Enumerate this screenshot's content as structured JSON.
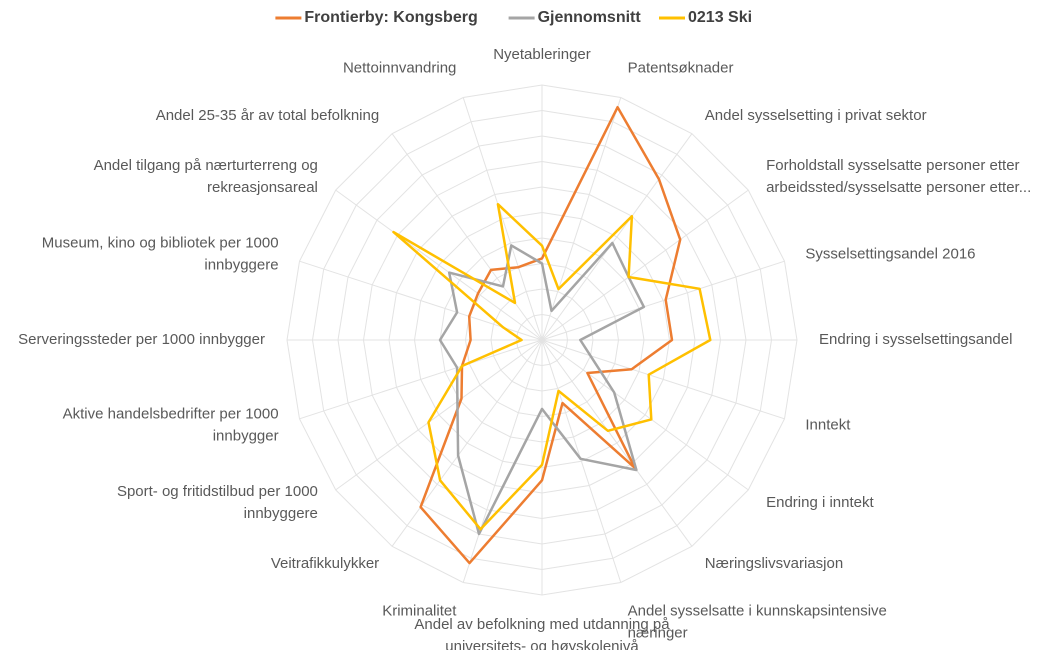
{
  "chart_data": {
    "type": "radar",
    "categories": [
      [
        "Nyetableringer"
      ],
      [
        "Patentsøknader"
      ],
      [
        "Andel sysselsetting i privat sektor"
      ],
      [
        "Forholdstall sysselsatte personer etter",
        "arbeidssted/sysselsatte personer etter..."
      ],
      [
        "Sysselsettingsandel 2016"
      ],
      [
        "Endring i sysselsettingsandel"
      ],
      [
        "Inntekt"
      ],
      [
        "Endring i inntekt"
      ],
      [
        "Næringslivsvariasjon"
      ],
      [
        "Andel sysselsatte i kunnskapsintensive",
        "næringer"
      ],
      [
        "Andel av befolkning med utdanning på",
        "universitets- og høyskolenivå"
      ],
      [
        "Kriminalitet"
      ],
      [
        "Veitrafikkulykker"
      ],
      [
        "Sport- og fritidstilbud per 1000",
        "innbyggere"
      ],
      [
        "Aktive handelsbedrifter per 1000",
        "innbygger"
      ],
      [
        "Serveringssteder per 1000 innbygger"
      ],
      [
        "Museum, kino og bibliotek per 1000",
        "innbyggere"
      ],
      [
        "Andel tilgang på nærturterreng og",
        "rekreasjonsareal"
      ],
      [
        "Andel 25-35 år av total befolkning"
      ],
      [
        "Nettoinnvandring"
      ]
    ],
    "series": [
      {
        "name": "Frontierby: Kongsberg",
        "color": "#ED7D31",
        "values": [
          32,
          96,
          78,
          67,
          51,
          51,
          37,
          22,
          62,
          26,
          55,
          92,
          81,
          39,
          33,
          28,
          30,
          31,
          34,
          30
        ]
      },
      {
        "name": "Gjennomsnitt",
        "color": "#A5A5A5",
        "values": [
          30,
          12,
          47,
          42,
          42,
          15,
          20,
          35,
          63,
          49,
          27,
          80,
          56,
          41,
          35,
          40,
          35,
          45,
          26,
          39
        ]
      },
      {
        "name": "0213 Ski",
        "color": "#FFC000",
        "values": [
          37,
          21,
          60,
          42,
          65,
          66,
          44,
          53,
          44,
          21,
          49,
          78,
          68,
          55,
          33,
          8,
          16,
          72,
          18,
          56
        ]
      }
    ],
    "rlim": [
      0,
      100
    ],
    "rticks": [
      10,
      20,
      30,
      40,
      50,
      60,
      70,
      80,
      90,
      100
    ],
    "grid": true,
    "legend": "top"
  }
}
